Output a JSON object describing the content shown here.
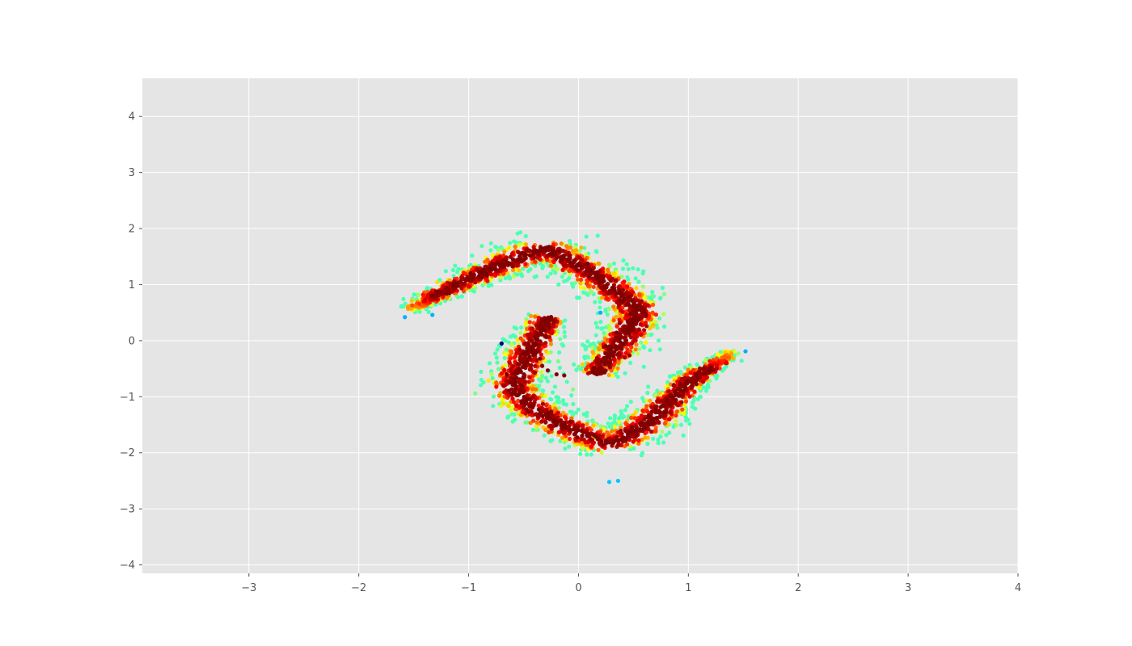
{
  "chart_data": {
    "type": "scatter",
    "title": "",
    "xlabel": "",
    "ylabel": "",
    "xlim": [
      -3.97,
      4.0
    ],
    "ylim": [
      -4.15,
      4.68
    ],
    "x_ticks": [
      -3,
      -2,
      -1,
      0,
      1,
      2,
      3,
      4
    ],
    "y_ticks": [
      -4,
      -3,
      -2,
      -1,
      0,
      1,
      2,
      3,
      4
    ],
    "x_tick_labels": [
      "−3",
      "−2",
      "−1",
      "0",
      "1",
      "2",
      "3",
      "4"
    ],
    "y_tick_labels": [
      "−4",
      "−3",
      "−2",
      "−1",
      "0",
      "1",
      "2",
      "3",
      "4"
    ],
    "grid": true,
    "legend": "none",
    "colormap": "jet",
    "color_meaning": "point density (blue = low, dark red = high)",
    "background_color": "#e5e5e5",
    "structure": "two interlocking arms with point-symmetry about the origin (2D density samples)",
    "arms": [
      {
        "name": "upper arm",
        "path": [
          [
            -1.55,
            0.55
          ],
          [
            -1.1,
            1.0
          ],
          [
            -0.6,
            1.45
          ],
          [
            -0.3,
            1.65
          ],
          [
            0.0,
            1.35
          ],
          [
            0.3,
            0.95
          ],
          [
            0.55,
            0.55
          ],
          [
            0.42,
            0.05
          ],
          [
            0.15,
            -0.6
          ]
        ]
      },
      {
        "name": "lower arm",
        "path": [
          [
            1.4,
            -0.2
          ],
          [
            1.0,
            -0.75
          ],
          [
            0.65,
            -1.45
          ],
          [
            0.3,
            -1.85
          ],
          [
            -0.05,
            -1.6
          ],
          [
            -0.35,
            -1.3
          ],
          [
            -0.6,
            -0.85
          ],
          [
            -0.5,
            -0.4
          ],
          [
            -0.27,
            0.42
          ]
        ]
      }
    ],
    "outliers": [
      {
        "x": -0.7,
        "y": -0.05,
        "color": "#000080"
      },
      {
        "x": 0.2,
        "y": 0.5,
        "color": "#00b0ff"
      },
      {
        "x": -1.58,
        "y": 0.42,
        "color": "#00b0ff"
      },
      {
        "x": 1.52,
        "y": -0.19,
        "color": "#00b0ff"
      },
      {
        "x": 0.28,
        "y": -2.52,
        "color": "#00c8ff"
      },
      {
        "x": 0.36,
        "y": -2.5,
        "color": "#00c8ff"
      },
      {
        "x": -1.33,
        "y": 0.46,
        "color": "#00b0ff"
      },
      {
        "x": -0.35,
        "y": -0.32,
        "color": "#800000"
      },
      {
        "x": -0.33,
        "y": -0.45,
        "color": "#800000"
      },
      {
        "x": -0.28,
        "y": -0.53,
        "color": "#800000"
      },
      {
        "x": -0.2,
        "y": -0.6,
        "color": "#800000"
      },
      {
        "x": -0.13,
        "y": -0.62,
        "color": "#800000"
      },
      {
        "x": 0.78,
        "y": 0.83,
        "color": "#80ff80"
      },
      {
        "x": -0.05,
        "y": -0.87,
        "color": "#80ff80"
      },
      {
        "x": -0.94,
        "y": -0.94,
        "color": "#80ff80"
      }
    ]
  }
}
